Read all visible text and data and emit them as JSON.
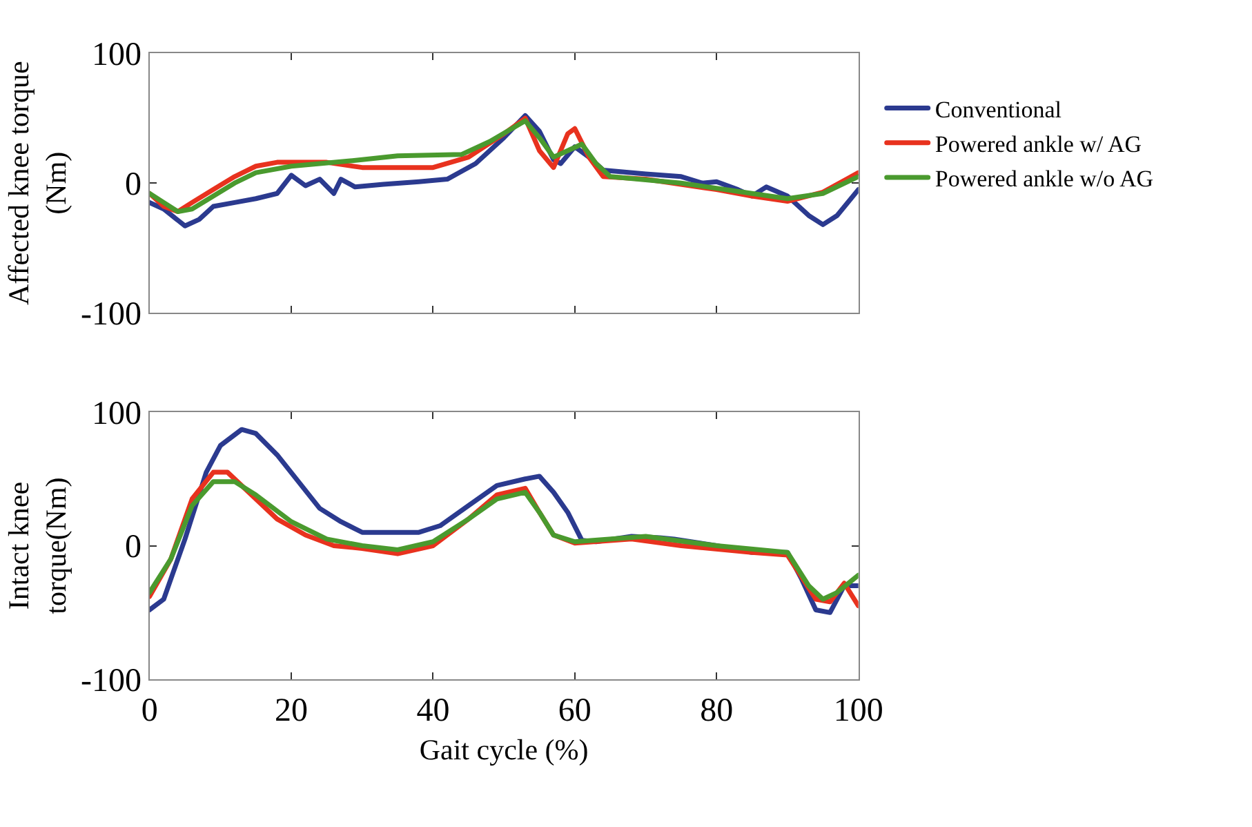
{
  "chart_data": [
    {
      "type": "line",
      "ylabel": "Affected knee torque\n(Nm)",
      "xlim": [
        0,
        100
      ],
      "xticks": [
        0,
        20,
        40,
        60,
        80,
        100
      ],
      "ylim": [
        -100,
        100
      ],
      "yticks": [
        -100,
        0,
        100
      ],
      "tick_labels": "y",
      "legend": "right",
      "series": [
        {
          "name": "Conventional",
          "color": "#2b3a8f",
          "x": [
            0,
            2,
            5,
            7,
            9,
            12,
            15,
            18,
            20,
            22,
            24,
            26,
            27,
            29,
            33,
            38,
            42,
            46,
            50,
            53,
            55,
            57,
            58,
            60,
            62,
            64,
            70,
            75,
            78,
            80,
            83,
            85,
            87,
            90,
            93,
            95,
            97,
            100
          ],
          "values": [
            -15,
            -20,
            -33,
            -28,
            -18,
            -15,
            -12,
            -8,
            6,
            -2,
            3,
            -8,
            3,
            -3,
            -1,
            1,
            3,
            15,
            35,
            52,
            40,
            18,
            15,
            28,
            20,
            10,
            7,
            5,
            0,
            1,
            -5,
            -10,
            -3,
            -10,
            -25,
            -32,
            -25,
            -5
          ]
        },
        {
          "name": "Powered ankle w/ AG",
          "color": "#e8321e",
          "x": [
            0,
            2,
            4,
            6,
            9,
            12,
            15,
            18,
            25,
            30,
            40,
            45,
            50,
            53,
            55,
            57,
            59,
            60,
            62,
            64,
            70,
            80,
            85,
            90,
            95,
            100
          ],
          "values": [
            -8,
            -18,
            -22,
            -15,
            -5,
            5,
            13,
            16,
            16,
            12,
            12,
            20,
            38,
            50,
            25,
            12,
            38,
            42,
            20,
            5,
            3,
            -5,
            -10,
            -14,
            -7,
            8
          ]
        },
        {
          "name": "Powered ankle w/o AG",
          "color": "#4a9a2e",
          "x": [
            0,
            2,
            4,
            6,
            9,
            12,
            15,
            20,
            30,
            35,
            44,
            48,
            53,
            55,
            57,
            59,
            61,
            63,
            65,
            75,
            85,
            90,
            95,
            100
          ],
          "values": [
            -8,
            -15,
            -22,
            -20,
            -10,
            0,
            8,
            13,
            18,
            21,
            22,
            32,
            48,
            35,
            20,
            25,
            30,
            15,
            5,
            0,
            -8,
            -12,
            -8,
            5
          ]
        }
      ]
    },
    {
      "type": "line",
      "xlabel": "Gait cycle (%)",
      "ylabel": "Intact knee\ntorque(Nm)",
      "xlim": [
        0,
        100
      ],
      "xticks": [
        0,
        20,
        40,
        60,
        80,
        100
      ],
      "ylim": [
        -100,
        100
      ],
      "yticks": [
        -100,
        0,
        100
      ],
      "series": [
        {
          "color": "#2b3a8f",
          "x": [
            0,
            2,
            5,
            8,
            10,
            13,
            15,
            18,
            21,
            24,
            27,
            30,
            38,
            41,
            45,
            49,
            53,
            55,
            57,
            59,
            61,
            63,
            68,
            72,
            74,
            80,
            85,
            90,
            92,
            94,
            96,
            98,
            100
          ],
          "values": [
            -48,
            -40,
            5,
            55,
            75,
            87,
            84,
            68,
            48,
            28,
            18,
            10,
            10,
            15,
            30,
            45,
            50,
            52,
            40,
            25,
            4,
            3,
            7,
            6,
            5,
            0,
            -5,
            -5,
            -25,
            -48,
            -50,
            -30,
            -30
          ]
        },
        {
          "color": "#e8321e",
          "x": [
            0,
            3,
            6,
            9,
            11,
            14,
            18,
            22,
            26,
            30,
            35,
            40,
            45,
            49,
            53,
            55,
            57,
            60,
            68,
            75,
            85,
            90,
            94,
            96,
            98,
            100
          ],
          "values": [
            -38,
            -10,
            35,
            55,
            55,
            40,
            20,
            8,
            0,
            -2,
            -6,
            0,
            20,
            38,
            43,
            25,
            8,
            2,
            5,
            0,
            -5,
            -7,
            -40,
            -42,
            -28,
            -45
          ]
        },
        {
          "color": "#4a9a2e",
          "x": [
            0,
            3,
            6,
            9,
            12,
            15,
            20,
            25,
            30,
            35,
            40,
            45,
            49,
            53,
            55,
            57,
            60,
            70,
            80,
            90,
            93,
            95,
            97,
            100
          ],
          "values": [
            -35,
            -10,
            30,
            48,
            48,
            38,
            18,
            5,
            0,
            -3,
            3,
            20,
            35,
            40,
            25,
            8,
            3,
            7,
            0,
            -5,
            -30,
            -40,
            -35,
            -22
          ]
        }
      ]
    }
  ]
}
